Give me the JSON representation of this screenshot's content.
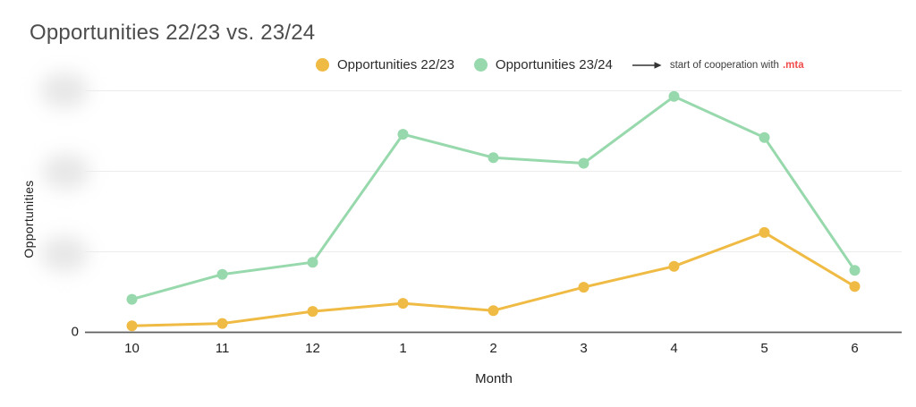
{
  "title": "Opportunities 22/23 vs. 23/24",
  "colors": {
    "series_2223": "#EFBB44",
    "series_2324": "#97D9AC",
    "annotation_highlight": "#F04C4C",
    "axis_line": "#5f5f5f",
    "gridline": "#ececec"
  },
  "legend": {
    "position": "top-center",
    "items": [
      {
        "label": "Opportunities 22/23",
        "color": "#EFBB44"
      },
      {
        "label": "Opportunities 23/24",
        "color": "#97D9AC"
      }
    ]
  },
  "annotation": {
    "arrow_icon": "long-right-arrow",
    "text": "start of cooperation with",
    "highlight": ".mta",
    "highlight_color": "#F04C4C"
  },
  "chart_data": {
    "type": "line",
    "title": "Opportunities 22/23 vs. 23/24",
    "x": [
      "10",
      "11",
      "12",
      "1",
      "2",
      "3",
      "4",
      "5",
      "6"
    ],
    "xlabel": "Month",
    "ylabel": "Opportunities",
    "grid": true,
    "legend_position": "top-center",
    "ylim": [
      0,
      318
    ],
    "y_axis": {
      "zero_tick_label": "0",
      "tick_labels_redacted": true,
      "redacted_tick_count": 3,
      "gridline_values": [
        100,
        200,
        300
      ]
    },
    "series": [
      {
        "name": "Opportunities 22/23",
        "color": "#EFBB44",
        "values": [
          8,
          11,
          26,
          36,
          27,
          56,
          82,
          124,
          57
        ]
      },
      {
        "name": "Opportunities 23/24",
        "color": "#97D9AC",
        "values": [
          41,
          72,
          87,
          246,
          217,
          210,
          293,
          242,
          77
        ]
      }
    ]
  }
}
